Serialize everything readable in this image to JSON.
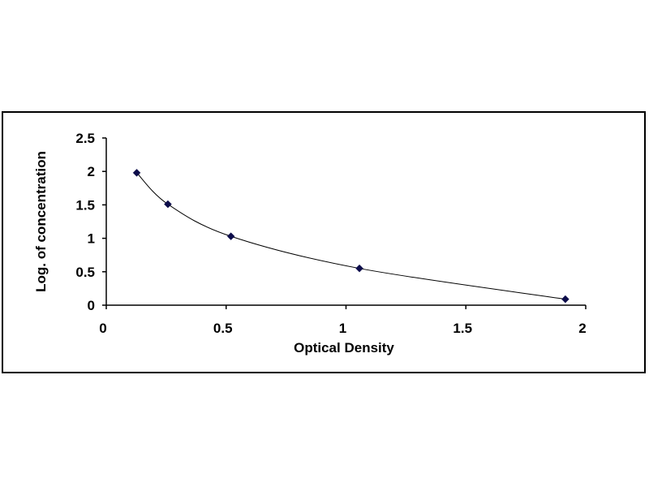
{
  "chart_data": {
    "type": "scatter",
    "title": "",
    "xlabel": "Optical Density",
    "ylabel": "Log. of concentration",
    "xlim": [
      0,
      2
    ],
    "ylim": [
      0,
      2.5
    ],
    "x_ticks": [
      "0",
      "0.5",
      "1",
      "1.5",
      "2"
    ],
    "y_ticks": [
      "0",
      "0.5",
      "1",
      "1.5",
      "2",
      "2.5"
    ],
    "grid": false,
    "legend": "none",
    "series": [
      {
        "x": [
          0.127,
          0.257,
          0.52,
          1.056,
          1.915
        ],
        "y": [
          1.98,
          1.51,
          1.03,
          0.55,
          0.09
        ],
        "marker": "diamond",
        "trendline": "smooth"
      }
    ],
    "colors": {
      "marker": "#0c0c4a",
      "line": "#000000",
      "axis": "#000000"
    }
  }
}
